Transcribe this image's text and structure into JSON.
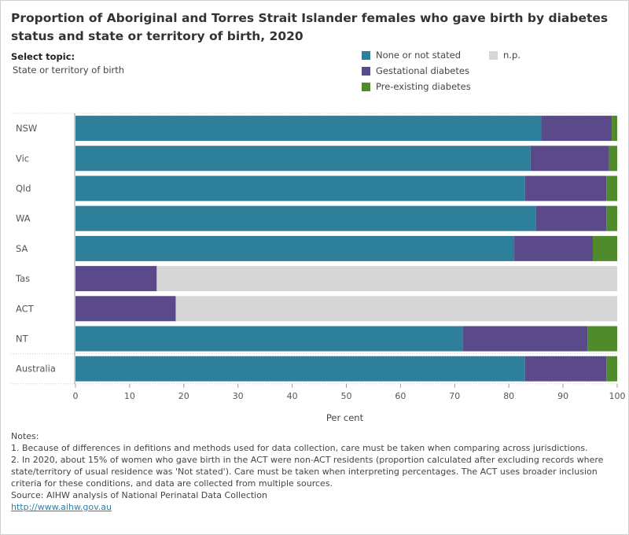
{
  "title": "Proportion of Aboriginal and Torres Strait Islander females who gave birth by diabetes status and state or territory of birth, 2020",
  "topic": {
    "label": "Select topic:",
    "value": "State or territory of birth"
  },
  "colors": {
    "none": "#2e7f99",
    "gestational": "#5b4a8a",
    "preexisting": "#4f8a2b",
    "np": "#d6d6d6"
  },
  "chart_data": {
    "type": "bar",
    "orientation": "horizontal",
    "stacked": true,
    "categories": [
      "NSW",
      "Vic",
      "Qld",
      "WA",
      "SA",
      "Tas",
      "ACT",
      "NT",
      "Australia"
    ],
    "series": [
      {
        "name": "None or not stated",
        "color": "#2e7f99",
        "values": [
          86.0,
          84.0,
          83.0,
          85.0,
          81.0,
          0,
          0,
          71.5,
          83.0
        ]
      },
      {
        "name": "Gestational diabetes",
        "color": "#5b4a8a",
        "values": [
          13.0,
          14.5,
          15.0,
          13.0,
          14.5,
          15.0,
          18.5,
          23.0,
          15.0
        ]
      },
      {
        "name": "Pre-existing diabetes",
        "color": "#4f8a2b",
        "values": [
          1.0,
          1.5,
          2.0,
          2.0,
          4.5,
          0,
          0,
          5.5,
          2.0
        ]
      },
      {
        "name": "n.p.",
        "color": "#d6d6d6",
        "values": [
          0,
          0,
          0,
          0,
          0,
          85.0,
          81.5,
          0,
          0
        ]
      }
    ],
    "xlabel": "Per cent",
    "xlim": [
      0,
      100
    ],
    "xticks": [
      0,
      10,
      20,
      30,
      40,
      50,
      60,
      70,
      80,
      90,
      100
    ],
    "legend_position": "top-right"
  },
  "notes": {
    "heading": "Notes:",
    "note1": "1. Because of differences in defitions and methods used for data collection, care must be taken when comparing across jurisdictions.",
    "note2": "2. In 2020, about 15% of women who gave birth in the ACT were non-ACT residents (proportion calculated after excluding records where state/territory of usual residence was 'Not stated'). Care must be taken when interpreting percentages. The ACT uses broader inclusion criteria for these conditions, and data are collected from multiple sources.",
    "source": "Source: AIHW analysis of National Perinatal Data Collection",
    "link": "http://www.aihw.gov.au"
  }
}
